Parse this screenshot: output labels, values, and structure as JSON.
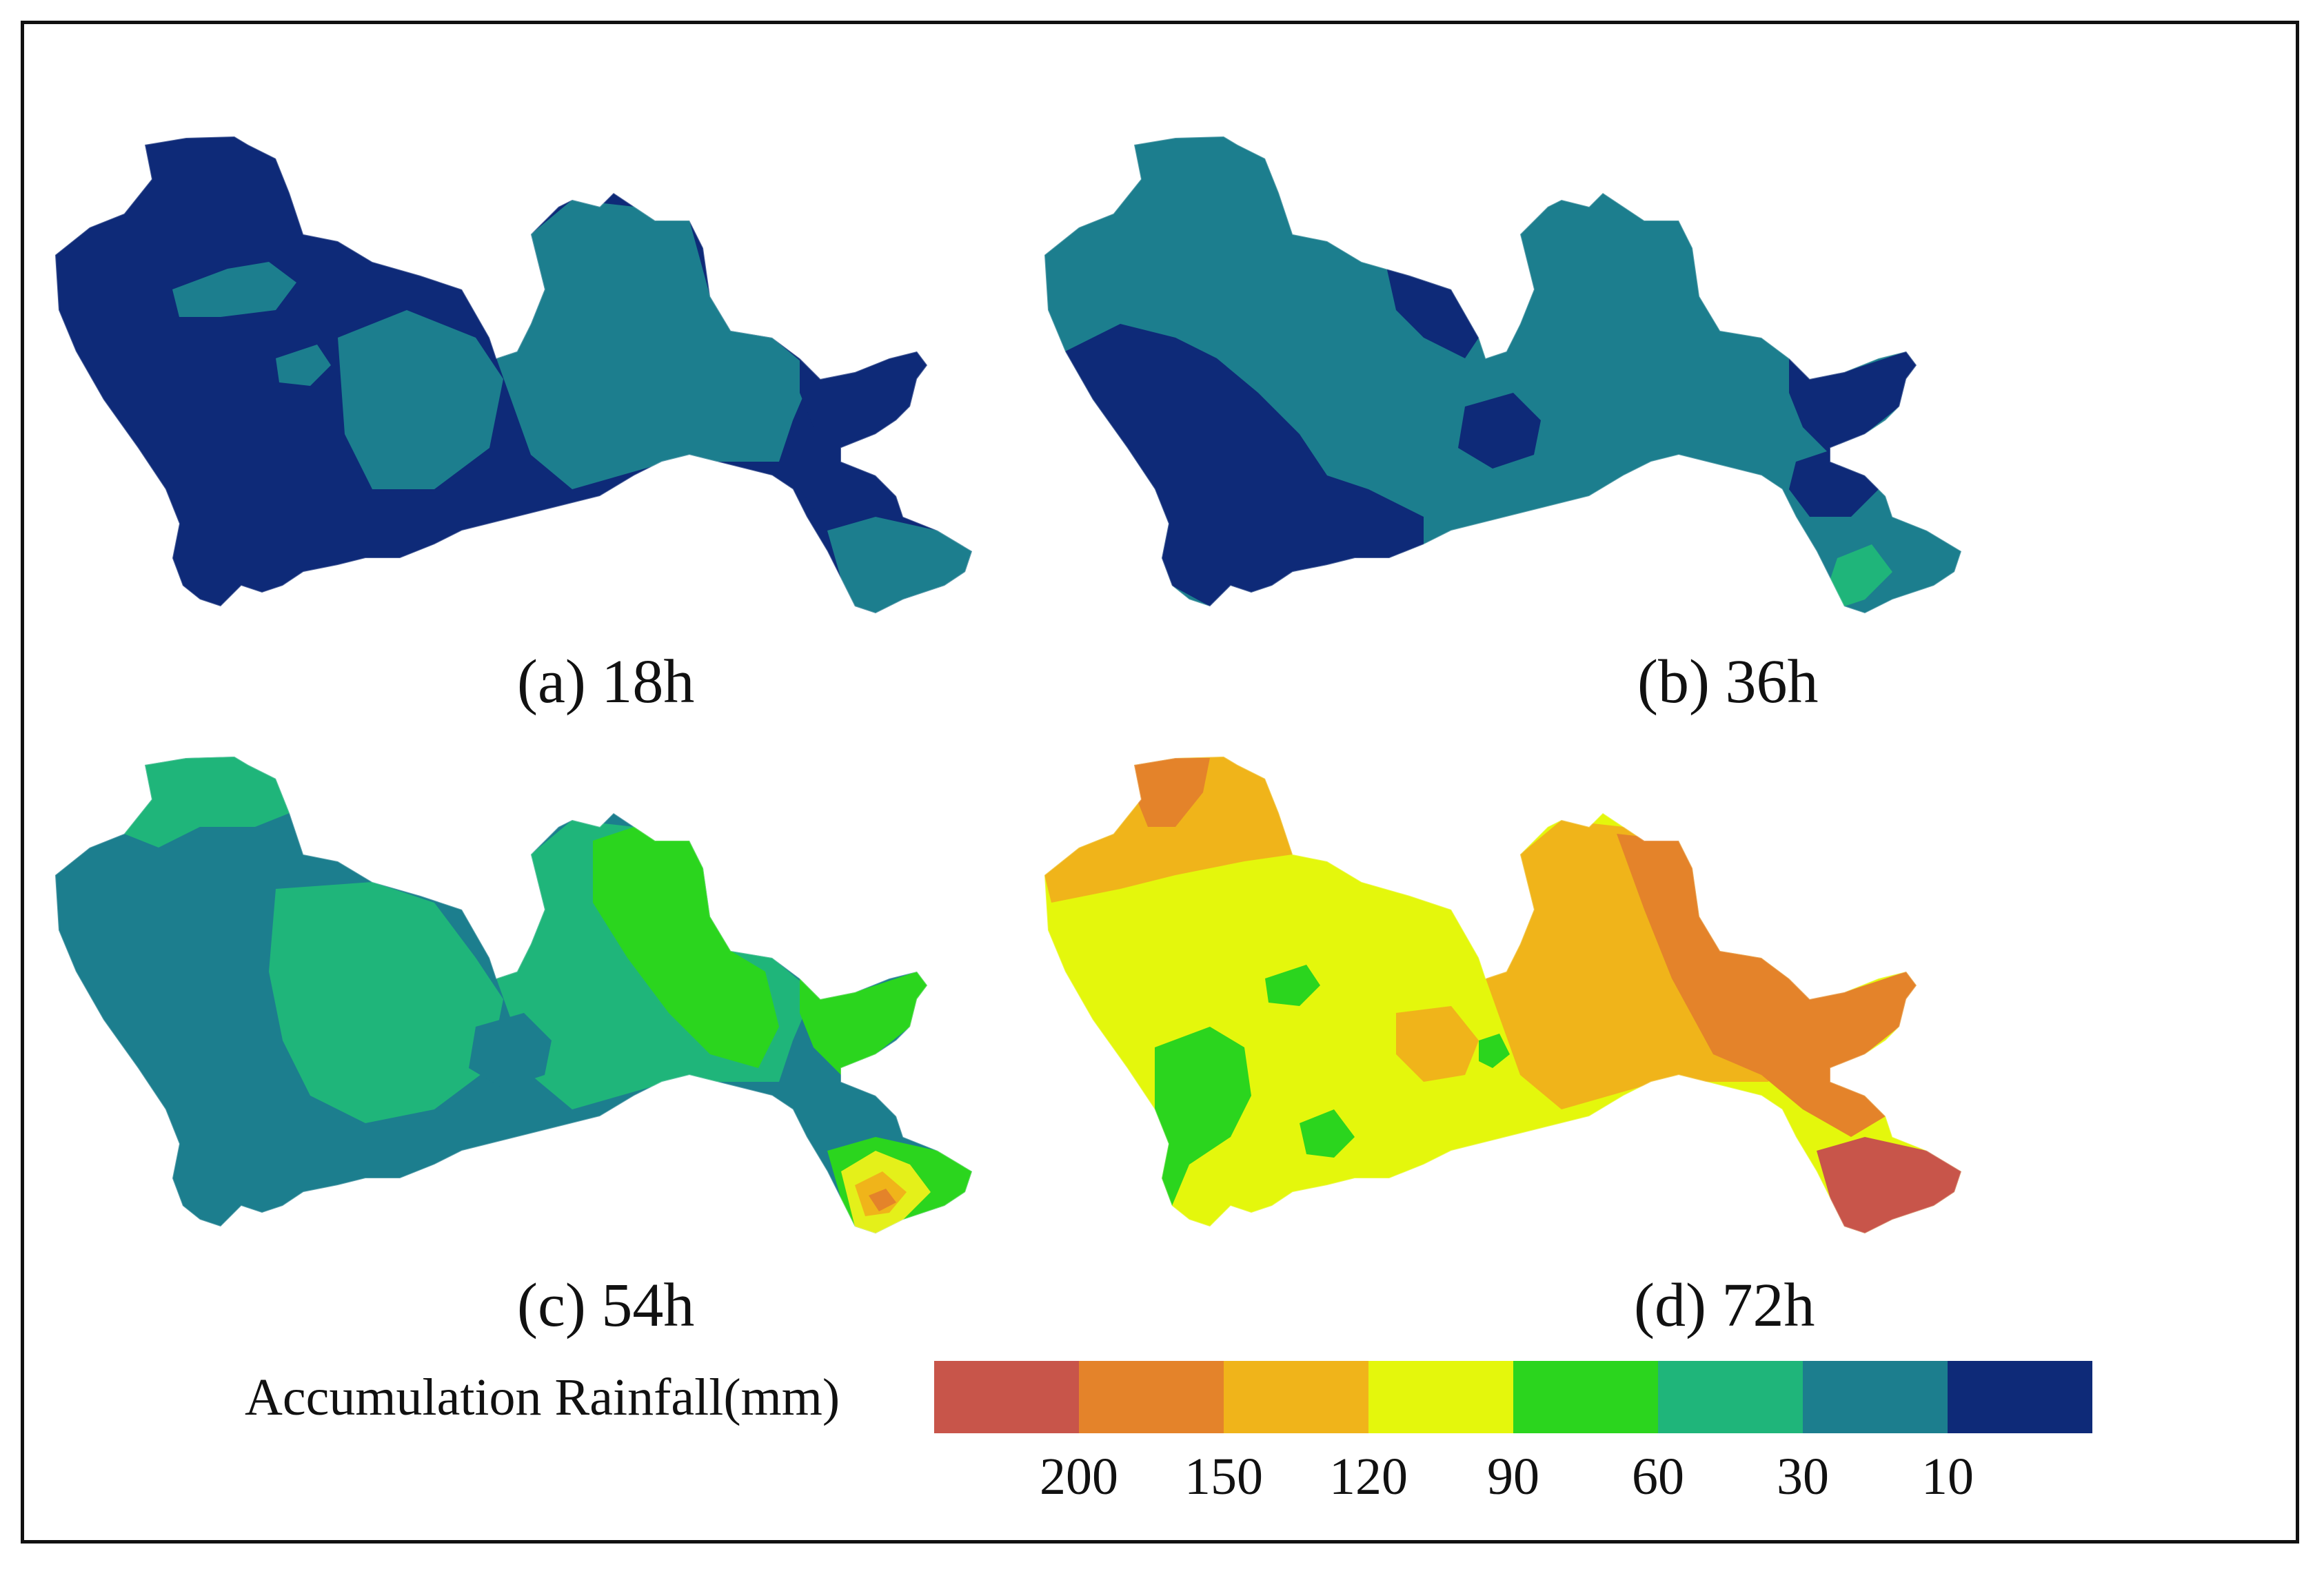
{
  "panels": [
    {
      "caption": "(a) 18h",
      "base": "#0e2a78",
      "patches": [
        {
          "color": "#1c7e8e",
          "shape": "east"
        },
        {
          "color": "#1c7e8e",
          "shape": "center"
        },
        {
          "color": "#1c7e8e",
          "shape": "blob-n"
        },
        {
          "color": "#1c7e8e",
          "shape": "blob-w"
        },
        {
          "color": "#0e2a78",
          "shape": "ne-lobe"
        },
        {
          "color": "#0e2a78",
          "shape": "se-neck"
        },
        {
          "color": "#1c7e8e",
          "shape": "se-tip"
        }
      ]
    },
    {
      "caption": "(b) 36h",
      "base": "#1c7e8e",
      "patches": [
        {
          "color": "#0e2a78",
          "shape": "sw"
        },
        {
          "color": "#0e2a78",
          "shape": "mid-n"
        },
        {
          "color": "#0e2a78",
          "shape": "mid-s"
        },
        {
          "color": "#0e2a78",
          "shape": "ne-lobe"
        },
        {
          "color": "#0e2a78",
          "shape": "se-neck"
        },
        {
          "color": "#1fb57a",
          "shape": "se-spot"
        }
      ]
    },
    {
      "caption": "(c) 54h",
      "base": "#1c7e8e",
      "patches": [
        {
          "color": "#1fb57a",
          "shape": "mid-green"
        },
        {
          "color": "#1fb57a",
          "shape": "n-strip"
        },
        {
          "color": "#1fb57a",
          "shape": "east"
        },
        {
          "color": "#2bd51e",
          "shape": "ne-bright"
        },
        {
          "color": "#2bd51e",
          "shape": "ne-lobe"
        },
        {
          "color": "#1c7e8e",
          "shape": "mid-s"
        },
        {
          "color": "#2bd51e",
          "shape": "se-tip"
        },
        {
          "color": "#e4f01a",
          "shape": "se-yellow"
        },
        {
          "color": "#f0b41a",
          "shape": "se-orange"
        },
        {
          "color": "#e4832a",
          "shape": "se-red"
        }
      ]
    },
    {
      "caption": "(d) 72h",
      "base": "#e4f70c",
      "patches": [
        {
          "color": "#f0b41a",
          "shape": "nw-band"
        },
        {
          "color": "#e4832a",
          "shape": "nw-top"
        },
        {
          "color": "#2bd51e",
          "shape": "blob-w"
        },
        {
          "color": "#2bd51e",
          "shape": "sw-green"
        },
        {
          "color": "#2bd51e",
          "shape": "s-spot"
        },
        {
          "color": "#f0b41a",
          "shape": "east"
        },
        {
          "color": "#e4832a",
          "shape": "far-east"
        },
        {
          "color": "#f0b41a",
          "shape": "mid-orange"
        },
        {
          "color": "#2bd51e",
          "shape": "tiny-green"
        },
        {
          "color": "#c8554a",
          "shape": "se-tip"
        }
      ]
    }
  ],
  "legend": {
    "title": "Accumulation Rainfall(mm)",
    "colors": [
      "#c8554a",
      "#e4832a",
      "#f0b41a",
      "#e4f70c",
      "#2bd51e",
      "#1fb57a",
      "#1c7e8e",
      "#0e2a78"
    ],
    "ticks": [
      "200",
      "150",
      "120",
      "90",
      "60",
      "30",
      "10"
    ]
  }
}
